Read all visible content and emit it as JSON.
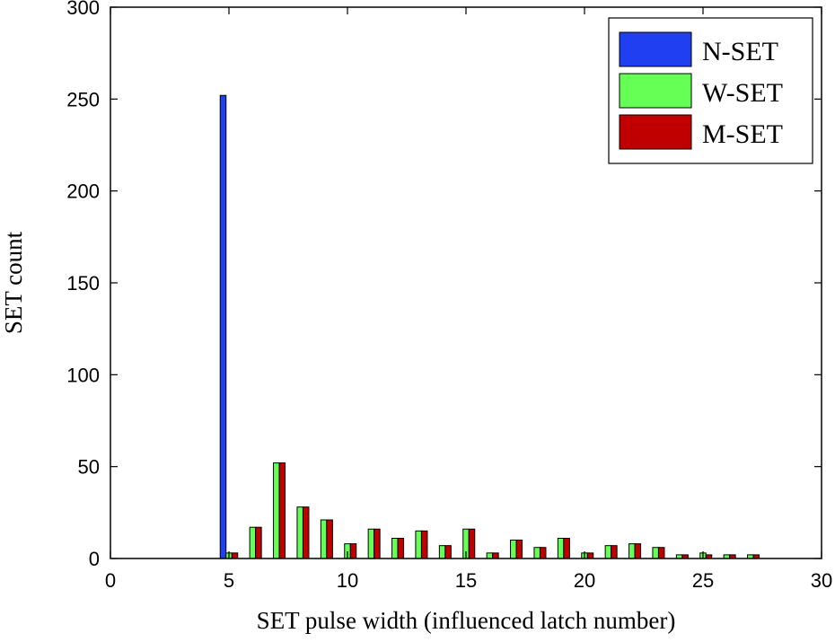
{
  "chart_data": {
    "type": "bar",
    "xlabel": "SET pulse width  (influenced latch number)",
    "ylabel": "SET count",
    "xlim": [
      0,
      30
    ],
    "ylim": [
      0,
      300
    ],
    "xticks": [
      0,
      5,
      10,
      15,
      20,
      25,
      30
    ],
    "yticks": [
      0,
      50,
      100,
      150,
      200,
      250,
      300
    ],
    "grid": false,
    "legend_position": "top-right",
    "series": [
      {
        "name": "N-SET",
        "color": "#1f3ff0",
        "x": [
          5,
          6,
          7,
          8,
          9,
          10,
          11,
          12,
          13,
          14,
          15,
          16,
          17,
          18,
          19,
          20,
          21,
          22,
          23,
          24,
          25,
          26,
          27
        ],
        "values": [
          252,
          0,
          0,
          0,
          0,
          0,
          0,
          0,
          0,
          0,
          0,
          0,
          0,
          0,
          0,
          0,
          0,
          0,
          0,
          0,
          0,
          0,
          0
        ]
      },
      {
        "name": "W-SET",
        "color": "#66ff55",
        "x": [
          5,
          6,
          7,
          8,
          9,
          10,
          11,
          12,
          13,
          14,
          15,
          16,
          17,
          18,
          19,
          20,
          21,
          22,
          23,
          24,
          25,
          26,
          27
        ],
        "values": [
          3,
          17,
          52,
          28,
          21,
          8,
          16,
          11,
          15,
          7,
          16,
          3,
          10,
          6,
          11,
          3,
          7,
          8,
          6,
          2,
          3,
          2,
          2
        ]
      },
      {
        "name": "M-SET",
        "color": "#c00000",
        "x": [
          5,
          6,
          7,
          8,
          9,
          10,
          11,
          12,
          13,
          14,
          15,
          16,
          17,
          18,
          19,
          20,
          21,
          22,
          23,
          24,
          25,
          26,
          27
        ],
        "values": [
          3,
          17,
          52,
          28,
          21,
          8,
          16,
          11,
          15,
          7,
          16,
          3,
          10,
          6,
          11,
          3,
          7,
          8,
          6,
          2,
          2,
          2,
          2
        ]
      }
    ]
  }
}
